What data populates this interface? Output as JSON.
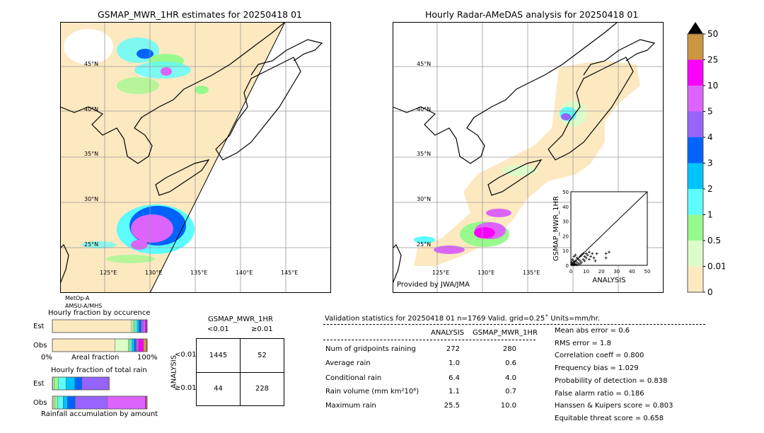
{
  "left_map": {
    "title": "GSMAP_MWR_1HR estimates for 20250418 01",
    "lat_labels": [
      "45°N",
      "40°N",
      "35°N",
      "30°N",
      "25°N"
    ],
    "lon_labels": [
      "125°E",
      "130°E",
      "135°E",
      "140°E",
      "145°E"
    ],
    "satellite": "MetOp-A",
    "sensor": "AMSU-A/MHS"
  },
  "right_map": {
    "title": "Hourly Radar-AMeDAS analysis for 20250418 01",
    "lat_labels": [
      "45°N",
      "40°N",
      "35°N",
      "30°N",
      "25°N"
    ],
    "lon_labels": [
      "125°E",
      "130°E",
      "135°E"
    ],
    "credit": "Provided by JWA/JMA"
  },
  "colorbar": {
    "labels": [
      "0",
      "0.01",
      "0.5",
      "1",
      "2",
      "3",
      "4",
      "5",
      "10",
      "25",
      "50"
    ],
    "colors": [
      "#fde9c0",
      "#dcfcc8",
      "#98fa8c",
      "#5cfcfc",
      "#00c4fc",
      "#0064fc",
      "#9664fc",
      "#dc64fc",
      "#fc00fc",
      "#cc9640"
    ],
    "extend_color": "#000000"
  },
  "chart_data": [
    {
      "type": "scatter",
      "xlabel": "ANALYSIS",
      "ylabel": "GSMAP_MWR_1HR",
      "xlim": [
        0,
        50
      ],
      "ylim": [
        0,
        50
      ],
      "xticks": [
        "0",
        "10",
        "20",
        "30",
        "40",
        "50"
      ],
      "yticks": [
        "0",
        "10",
        "20",
        "30",
        "40",
        "50"
      ],
      "diagonal": true,
      "points": [
        [
          0.5,
          0.3
        ],
        [
          1,
          1
        ],
        [
          1.5,
          0.5
        ],
        [
          2,
          2
        ],
        [
          2.5,
          1
        ],
        [
          3,
          3
        ],
        [
          3,
          0.5
        ],
        [
          4,
          2
        ],
        [
          4,
          5
        ],
        [
          5,
          1
        ],
        [
          5,
          4
        ],
        [
          6,
          3
        ],
        [
          6,
          6
        ],
        [
          7,
          2
        ],
        [
          7,
          7
        ],
        [
          8,
          4
        ],
        [
          8,
          8
        ],
        [
          9,
          3
        ],
        [
          9,
          6
        ],
        [
          10,
          5
        ],
        [
          10,
          8
        ],
        [
          11,
          7
        ],
        [
          12,
          4
        ],
        [
          12,
          9
        ],
        [
          13,
          6
        ],
        [
          14,
          8
        ],
        [
          15,
          5
        ],
        [
          16,
          3
        ],
        [
          17,
          8
        ],
        [
          23,
          8
        ],
        [
          25,
          9
        ],
        [
          23,
          5
        ],
        [
          1,
          4
        ],
        [
          2,
          6
        ],
        [
          3,
          7
        ],
        [
          0.5,
          2
        ],
        [
          1.5,
          3
        ],
        [
          2,
          0.2
        ],
        [
          4,
          0.3
        ],
        [
          6,
          1
        ]
      ]
    },
    {
      "type": "bar",
      "title": "Hourly fraction by occurence",
      "xlabel": "Areal fraction",
      "x_ticks": [
        "0%",
        "100%"
      ],
      "categories": [
        "Est",
        "Obs"
      ],
      "segments_percent": {
        "Est": [
          78,
          2,
          2,
          2,
          2,
          2,
          2,
          2,
          1.5,
          0.3,
          0.2
        ],
        "Obs": [
          66,
          14,
          2,
          2,
          2.5,
          1.5,
          1.5,
          1.5,
          5,
          3.5,
          0.5
        ]
      }
    },
    {
      "type": "bar",
      "title": "Hourly fraction of total rain",
      "xlabel": "Rainfall accumulation by amount",
      "categories": [
        "Est",
        "Obs"
      ],
      "segments_percent": {
        "Est": [
          0.5,
          1.5,
          5,
          8.5,
          10,
          8,
          30,
          1,
          0,
          0
        ],
        "Obs": [
          1,
          1.5,
          3,
          6,
          4.5,
          8,
          34,
          40,
          1,
          1
        ]
      },
      "scale_total": {
        "Est": 0.6,
        "Obs": 1.0
      }
    }
  ],
  "contingency": {
    "title": "GSMAP_MWR_1HR",
    "col_labels": [
      "<0.01",
      "≥0.01"
    ],
    "row_axis": "ANALYSIS",
    "row_labels": [
      "<0.01",
      "≥0.01"
    ],
    "cells": [
      [
        "1445",
        "52"
      ],
      [
        "44",
        "228"
      ]
    ]
  },
  "stats": {
    "header": "Validation statistics for 20250418 01  n=1769 Valid. grid=0.25˚ Units=mm/hr.",
    "col_analysis": "ANALYSIS",
    "col_gsmap": "GSMAP_MWR_1HR",
    "rows": [
      {
        "label": "Num of gridpoints raining",
        "analysis": "272",
        "gsmap": "280"
      },
      {
        "label": "Average rain",
        "analysis": "1.0",
        "gsmap": "0.6"
      },
      {
        "label": "Conditional rain",
        "analysis": "6.4",
        "gsmap": "4.0"
      },
      {
        "label": "Rain volume (mm km²10⁶)",
        "analysis": "1.1",
        "gsmap": "0.7"
      },
      {
        "label": "Maximum rain",
        "analysis": "25.5",
        "gsmap": "10.0"
      }
    ],
    "scores": [
      "Mean abs error =    0.6",
      "RMS error =    1.8",
      "Correlation coeff =  0.800",
      "Frequency bias =  1.029",
      "Probability of detection =  0.838",
      "False alarm ratio =  0.186",
      "Hanssen & Kuipers score =  0.803",
      "Equitable threat score =  0.658"
    ]
  }
}
